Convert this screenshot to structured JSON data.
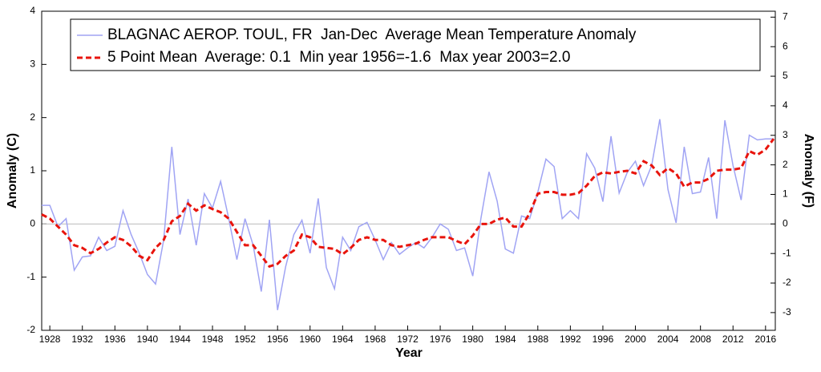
{
  "chart_data": {
    "type": "line",
    "xlabel": "Year",
    "ylabel": "Anomaly (C)",
    "y2label": "Anomaly (F)",
    "x": [
      1927,
      1928,
      1929,
      1930,
      1931,
      1932,
      1933,
      1934,
      1935,
      1936,
      1937,
      1938,
      1939,
      1940,
      1941,
      1942,
      1943,
      1944,
      1945,
      1946,
      1947,
      1948,
      1949,
      1950,
      1951,
      1952,
      1953,
      1954,
      1955,
      1956,
      1957,
      1958,
      1959,
      1960,
      1961,
      1962,
      1963,
      1964,
      1965,
      1966,
      1967,
      1968,
      1969,
      1970,
      1971,
      1972,
      1973,
      1974,
      1975,
      1976,
      1977,
      1978,
      1979,
      1980,
      1981,
      1982,
      1983,
      1984,
      1985,
      1986,
      1987,
      1988,
      1989,
      1990,
      1991,
      1992,
      1993,
      1994,
      1995,
      1996,
      1997,
      1998,
      1999,
      2000,
      2001,
      2002,
      2003,
      2004,
      2005,
      2006,
      2007,
      2008,
      2009,
      2010,
      2011,
      2012,
      2013,
      2014,
      2015,
      2016,
      2017
    ],
    "series": [
      {
        "name": "BLAGNAC AEROP. TOUL, FR  Jan-Dec  Average Mean Temperature Anomaly",
        "color": "#a0a4f4",
        "line_style": "solid",
        "values": [
          0.35,
          0.35,
          -0.05,
          0.1,
          -0.87,
          -0.62,
          -0.6,
          -0.25,
          -0.5,
          -0.42,
          0.25,
          -0.2,
          -0.55,
          -0.95,
          -1.13,
          -0.3,
          1.45,
          -0.2,
          0.47,
          -0.4,
          0.57,
          0.3,
          0.8,
          0.1,
          -0.67,
          0.1,
          -0.4,
          -1.27,
          0.08,
          -1.62,
          -0.8,
          -0.2,
          0.07,
          -0.55,
          0.48,
          -0.82,
          -1.22,
          -0.25,
          -0.5,
          -0.05,
          0.03,
          -0.3,
          -0.67,
          -0.35,
          -0.57,
          -0.45,
          -0.35,
          -0.45,
          -0.25,
          0.0,
          -0.1,
          -0.5,
          -0.45,
          -0.98,
          0.1,
          0.98,
          0.43,
          -0.47,
          -0.55,
          0.15,
          0.1,
          0.6,
          1.22,
          1.08,
          0.1,
          0.25,
          0.1,
          1.32,
          1.05,
          0.42,
          1.65,
          0.58,
          0.97,
          1.18,
          0.72,
          1.1,
          1.97,
          0.65,
          0.02,
          1.45,
          0.57,
          0.6,
          1.25,
          0.1,
          1.95,
          1.1,
          0.45,
          1.67,
          1.58,
          1.6,
          1.6
        ]
      },
      {
        "name": "5 Point Mean  Average: 0.1  Min year 1956=-1.6  Max year 2003=2.0",
        "color": "#e8140c",
        "line_style": "dashed",
        "values": [
          0.18,
          0.1,
          -0.05,
          -0.2,
          -0.4,
          -0.45,
          -0.55,
          -0.47,
          -0.35,
          -0.25,
          -0.3,
          -0.42,
          -0.6,
          -0.68,
          -0.45,
          -0.3,
          0.05,
          0.15,
          0.38,
          0.25,
          0.35,
          0.28,
          0.22,
          0.1,
          -0.15,
          -0.4,
          -0.4,
          -0.6,
          -0.8,
          -0.75,
          -0.6,
          -0.5,
          -0.2,
          -0.25,
          -0.43,
          -0.45,
          -0.47,
          -0.57,
          -0.45,
          -0.3,
          -0.25,
          -0.3,
          -0.3,
          -0.4,
          -0.43,
          -0.4,
          -0.37,
          -0.3,
          -0.25,
          -0.25,
          -0.25,
          -0.32,
          -0.38,
          -0.22,
          0.0,
          0.0,
          0.08,
          0.12,
          -0.05,
          -0.05,
          0.2,
          0.57,
          0.6,
          0.6,
          0.55,
          0.55,
          0.58,
          0.72,
          0.9,
          0.97,
          0.95,
          0.98,
          1.0,
          0.95,
          1.18,
          1.1,
          0.92,
          1.05,
          0.95,
          0.7,
          0.78,
          0.78,
          0.85,
          1.0,
          1.02,
          1.02,
          1.05,
          1.37,
          1.3,
          1.4,
          1.6
        ]
      }
    ],
    "xlim": [
      1927,
      2017.2
    ],
    "xticks": [
      1928,
      1932,
      1936,
      1940,
      1944,
      1948,
      1952,
      1956,
      1960,
      1964,
      1968,
      1972,
      1976,
      1980,
      1984,
      1988,
      1992,
      1996,
      2000,
      2004,
      2008,
      2012,
      2016
    ],
    "ylim": [
      -2,
      4
    ],
    "yticks": [
      -2,
      -1,
      0,
      1,
      2,
      3,
      4
    ],
    "y2lim": [
      -3.6,
      7.2
    ],
    "y2ticks": [
      -3,
      -2,
      -1,
      0,
      1,
      2,
      3,
      4,
      5,
      6,
      7
    ],
    "zero_line": true,
    "legend": "top"
  }
}
